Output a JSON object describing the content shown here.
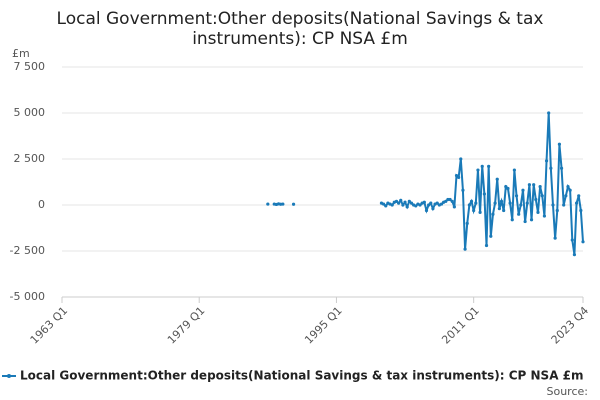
{
  "chart_data": {
    "type": "line",
    "title": "Local Government:Other deposits(National Savings & tax instruments): CP NSA £m",
    "y_unit": "£m",
    "source": "Source:",
    "grid": true,
    "legend": "bottom",
    "categories": [
      "1963 Q1",
      null,
      null,
      null,
      null,
      null,
      null,
      null,
      null,
      null,
      null,
      null,
      null,
      null,
      null,
      null,
      null,
      null,
      null,
      null,
      null,
      null,
      null,
      null,
      null,
      null,
      null,
      null,
      null,
      null,
      null,
      null,
      null,
      null,
      null,
      null,
      null,
      null,
      null,
      null,
      null,
      null,
      null,
      null,
      null,
      null,
      null,
      null,
      null,
      null,
      null,
      null,
      null,
      null,
      null,
      null,
      null,
      null,
      null,
      null,
      null,
      null,
      null,
      null,
      "1979 Q1",
      null,
      null,
      null,
      null,
      null,
      null,
      null,
      null,
      null,
      null,
      null,
      null,
      null,
      null,
      null,
      null,
      null,
      null,
      null,
      null,
      null,
      null,
      null,
      null,
      null,
      null,
      null,
      null,
      null,
      null,
      null,
      null,
      null,
      null,
      null,
      null,
      null,
      null,
      null,
      null,
      null,
      null,
      null,
      null,
      null,
      null,
      null,
      null,
      null,
      null,
      null,
      null,
      null,
      null,
      null,
      null,
      null,
      null,
      null,
      null,
      null,
      null,
      null,
      "1995 Q1",
      null,
      null,
      null,
      null,
      null,
      null,
      null,
      null,
      null,
      null,
      null,
      null,
      null,
      null,
      null,
      null,
      null,
      null,
      null,
      null,
      null,
      null,
      null,
      null,
      null,
      null,
      null,
      null,
      null,
      null,
      null,
      null,
      null,
      null,
      null,
      null,
      null,
      null,
      null,
      null,
      null,
      null,
      null,
      null,
      null,
      null,
      null,
      null,
      null,
      null,
      null,
      null,
      null,
      null,
      null,
      null,
      null,
      null,
      null,
      null,
      null,
      null,
      null,
      "2011 Q1",
      null,
      null,
      null,
      null,
      null,
      null,
      null,
      null,
      null,
      null,
      null,
      null,
      null,
      null,
      null,
      null,
      null,
      null,
      null,
      null,
      null,
      null,
      null,
      null,
      null,
      null,
      null,
      null,
      null,
      null,
      null,
      null,
      null,
      null,
      null,
      null,
      null,
      null,
      null,
      null,
      null,
      null,
      null,
      null,
      null,
      null,
      null,
      null,
      null,
      null,
      "2023 Q4"
    ],
    "series": [
      {
        "name": "Local Government:Other deposits(National Savings & tax instruments): CP NSA £m",
        "color": "#1a7ab8",
        "values": [
          null,
          null,
          null,
          null,
          null,
          null,
          null,
          null,
          null,
          null,
          null,
          null,
          null,
          null,
          null,
          null,
          null,
          null,
          null,
          null,
          null,
          null,
          null,
          null,
          null,
          null,
          null,
          null,
          null,
          null,
          null,
          null,
          null,
          null,
          null,
          null,
          null,
          null,
          null,
          null,
          null,
          null,
          null,
          null,
          null,
          null,
          null,
          null,
          null,
          null,
          null,
          null,
          null,
          null,
          null,
          null,
          null,
          null,
          null,
          null,
          null,
          null,
          null,
          null,
          null,
          null,
          null,
          null,
          null,
          null,
          null,
          null,
          null,
          null,
          null,
          null,
          null,
          null,
          null,
          null,
          null,
          null,
          null,
          null,
          null,
          null,
          null,
          null,
          null,
          null,
          null,
          null,
          null,
          null,
          null,
          null,
          50,
          null,
          null,
          50,
          30,
          60,
          40,
          50,
          null,
          null,
          null,
          null,
          40,
          null,
          null,
          null,
          null,
          null,
          null,
          null,
          null,
          null,
          null,
          null,
          null,
          null,
          null,
          null,
          null,
          null,
          null,
          null,
          null,
          null,
          null,
          null,
          null,
          null,
          null,
          null,
          null,
          null,
          null,
          null,
          null,
          null,
          null,
          null,
          null,
          null,
          null,
          null,
          null,
          100,
          50,
          -50,
          100,
          50,
          0,
          150,
          200,
          100,
          250,
          0,
          150,
          -100,
          200,
          100,
          0,
          -50,
          50,
          0,
          100,
          150,
          -300,
          0,
          100,
          -200,
          50,
          100,
          0,
          50,
          150,
          200,
          300,
          300,
          200,
          -100,
          1600,
          1500,
          2500,
          800,
          -2400,
          -1000,
          0,
          200,
          -300,
          100,
          1900,
          -400,
          2100,
          600,
          -2200,
          2100,
          -1700,
          -500,
          100,
          1400,
          -200,
          200,
          -300,
          1000,
          900,
          100,
          -800,
          1900,
          500,
          -500,
          0,
          800,
          -900,
          100,
          1100,
          -800,
          1100,
          300,
          -400,
          1000,
          500,
          -600,
          2400,
          5000,
          2000,
          0,
          -1800,
          -300,
          3300,
          2000,
          0,
          500,
          1000,
          800,
          -1900,
          -2700,
          100,
          500,
          -300,
          -2000
        ]
      }
    ],
    "ylim": [
      -5000,
      7500
    ],
    "yticks": [
      {
        "value": -5000,
        "label": "-5 000"
      },
      {
        "value": -2500,
        "label": "-2 500"
      },
      0,
      {
        "value": 2500,
        "label": "2 500"
      },
      {
        "value": 5000,
        "label": "5 000"
      },
      {
        "value": 7500,
        "label": "7 500"
      }
    ]
  }
}
